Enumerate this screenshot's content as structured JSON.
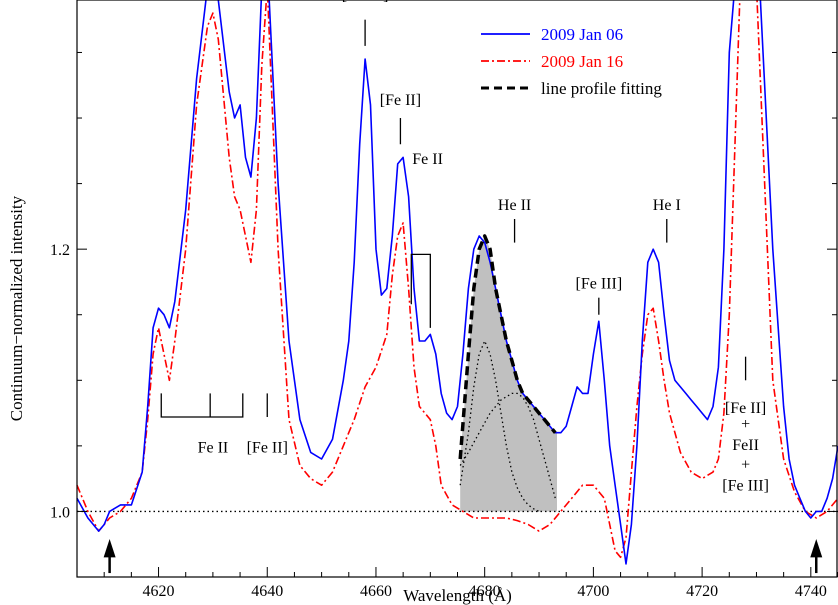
{
  "chart_data": {
    "type": "line",
    "title": "",
    "xlabel": "Wavelength (Å)",
    "ylabel": "Continuum−normalized intensity",
    "xlim": [
      4605,
      4745
    ],
    "ylim": [
      0.95,
      1.39
    ],
    "xticks": [
      4620,
      4640,
      4660,
      4680,
      4700,
      4720,
      4740
    ],
    "yticks": [
      1.0,
      1.2
    ],
    "ytick_labels": [
      "1.0",
      "1.2"
    ],
    "continuum_level": 1.0,
    "grid": false,
    "legend_position": "top-right",
    "colors": {
      "jan06": "#0000ff",
      "jan16": "#ff0000",
      "fit": "#000000",
      "fill": "#c0c0c0"
    },
    "series": [
      {
        "name": "2009 Jan 06",
        "style": "solid",
        "color": "#0000ff",
        "x": [
          4605,
          4607,
          4609,
          4610,
          4611,
          4613,
          4615,
          4617,
          4618,
          4619,
          4620,
          4621,
          4622,
          4623,
          4625,
          4627,
          4629,
          4630,
          4631,
          4633,
          4634,
          4635,
          4636,
          4637,
          4638,
          4639,
          4640,
          4642,
          4644,
          4646,
          4648,
          4650,
          4652,
          4654,
          4655,
          4656,
          4657,
          4658,
          4659,
          4660,
          4661,
          4662,
          4663,
          4664,
          4665,
          4666,
          4667,
          4668,
          4669,
          4670,
          4671,
          4672,
          4673,
          4674,
          4675,
          4676,
          4677,
          4678,
          4679,
          4680,
          4681,
          4682,
          4683,
          4684,
          4685,
          4686,
          4687,
          4688,
          4689,
          4690,
          4691,
          4692,
          4693,
          4694,
          4695,
          4696,
          4697,
          4698,
          4699,
          4700,
          4701,
          4702,
          4703,
          4704,
          4705,
          4706,
          4707,
          4708,
          4709,
          4710,
          4711,
          4712,
          4713,
          4714,
          4715,
          4716,
          4717,
          4718,
          4719,
          4720,
          4721,
          4722,
          4723,
          4724,
          4725,
          4727,
          4730,
          4733,
          4735,
          4736,
          4737,
          4738,
          4739,
          4740,
          4741,
          4742,
          4743,
          4744,
          4745
        ],
        "y": [
          1.01,
          0.995,
          0.985,
          0.99,
          1.0,
          1.005,
          1.005,
          1.03,
          1.08,
          1.14,
          1.155,
          1.15,
          1.14,
          1.16,
          1.23,
          1.33,
          1.4,
          1.41,
          1.39,
          1.32,
          1.3,
          1.31,
          1.27,
          1.255,
          1.3,
          1.4,
          1.42,
          1.25,
          1.13,
          1.07,
          1.045,
          1.04,
          1.055,
          1.1,
          1.13,
          1.19,
          1.28,
          1.345,
          1.31,
          1.2,
          1.165,
          1.17,
          1.21,
          1.265,
          1.27,
          1.24,
          1.17,
          1.13,
          1.13,
          1.135,
          1.12,
          1.09,
          1.075,
          1.07,
          1.08,
          1.12,
          1.17,
          1.2,
          1.21,
          1.205,
          1.19,
          1.17,
          1.15,
          1.13,
          1.115,
          1.1,
          1.09,
          1.085,
          1.08,
          1.075,
          1.07,
          1.065,
          1.06,
          1.06,
          1.065,
          1.08,
          1.095,
          1.09,
          1.09,
          1.12,
          1.145,
          1.1,
          1.05,
          1.02,
          0.99,
          0.96,
          0.99,
          1.05,
          1.13,
          1.19,
          1.2,
          1.19,
          1.15,
          1.115,
          1.1,
          1.095,
          1.09,
          1.085,
          1.08,
          1.075,
          1.07,
          1.08,
          1.11,
          1.2,
          1.35,
          1.45,
          1.45,
          1.2,
          1.08,
          1.04,
          1.02,
          1.01,
          1.0,
          0.995,
          1.0,
          1.0,
          1.01,
          1.025,
          1.05
        ]
      },
      {
        "name": "2009 Jan 16",
        "style": "dash-dot",
        "color": "#ff0000",
        "x": [
          4605,
          4607,
          4609,
          4610,
          4611,
          4613,
          4615,
          4617,
          4618,
          4619,
          4620,
          4621,
          4622,
          4623,
          4625,
          4627,
          4629,
          4630,
          4631,
          4633,
          4634,
          4635,
          4636,
          4637,
          4638,
          4639,
          4640,
          4642,
          4644,
          4646,
          4648,
          4650,
          4652,
          4654,
          4656,
          4658,
          4660,
          4662,
          4663,
          4664,
          4665,
          4666,
          4667,
          4668,
          4669,
          4670,
          4671,
          4672,
          4674,
          4676,
          4678,
          4680,
          4682,
          4684,
          4686,
          4688,
          4690,
          4692,
          4694,
          4696,
          4698,
          4700,
          4702,
          4703,
          4704,
          4705,
          4706,
          4707,
          4708,
          4709,
          4710,
          4711,
          4712,
          4713,
          4714,
          4716,
          4718,
          4720,
          4722,
          4723,
          4724,
          4725,
          4727,
          4730,
          4733,
          4735,
          4737,
          4739,
          4741,
          4743,
          4745
        ],
        "y": [
          1.02,
          1.0,
          0.985,
          0.99,
          0.995,
          1.0,
          1.01,
          1.03,
          1.07,
          1.12,
          1.14,
          1.12,
          1.1,
          1.13,
          1.2,
          1.31,
          1.37,
          1.38,
          1.36,
          1.27,
          1.24,
          1.23,
          1.21,
          1.19,
          1.23,
          1.34,
          1.4,
          1.2,
          1.07,
          1.035,
          1.025,
          1.02,
          1.03,
          1.05,
          1.07,
          1.095,
          1.11,
          1.135,
          1.18,
          1.21,
          1.22,
          1.17,
          1.11,
          1.08,
          1.075,
          1.07,
          1.05,
          1.02,
          1.005,
          1.0,
          0.995,
          0.995,
          0.995,
          0.995,
          0.993,
          0.99,
          0.985,
          0.99,
          1.0,
          1.01,
          1.02,
          1.02,
          1.01,
          0.99,
          0.97,
          0.965,
          0.98,
          1.03,
          1.08,
          1.12,
          1.15,
          1.155,
          1.13,
          1.1,
          1.075,
          1.045,
          1.03,
          1.025,
          1.03,
          1.04,
          1.075,
          1.15,
          1.4,
          1.4,
          1.1,
          1.04,
          1.015,
          1.0,
          0.995,
          1.0,
          1.01
        ]
      },
      {
        "name": "line profile fitting",
        "style": "dashed",
        "color": "#000000",
        "x": [
          4675.5,
          4677,
          4678,
          4679,
          4680,
          4681,
          4682,
          4683,
          4684,
          4685,
          4686,
          4687,
          4688,
          4689,
          4690,
          4691,
          4692,
          4693
        ],
        "y": [
          1.04,
          1.12,
          1.17,
          1.2,
          1.21,
          1.2,
          1.17,
          1.15,
          1.13,
          1.115,
          1.1,
          1.09,
          1.085,
          1.08,
          1.075,
          1.07,
          1.065,
          1.06
        ]
      }
    ],
    "components": [
      {
        "x": [
          4675.5,
          4677,
          4678,
          4679,
          4680,
          4681,
          4682,
          4683,
          4684,
          4685,
          4686,
          4687,
          4688,
          4689,
          4690
        ],
        "y": [
          1.02,
          1.06,
          1.095,
          1.12,
          1.13,
          1.12,
          1.1,
          1.075,
          1.05,
          1.03,
          1.018,
          1.01,
          1.005,
          1.002,
          1.0
        ]
      },
      {
        "x": [
          4675.5,
          4677,
          4679,
          4681,
          4683,
          4685,
          4686,
          4687,
          4688,
          4689,
          4690,
          4691,
          4692,
          4693
        ],
        "y": [
          1.035,
          1.045,
          1.06,
          1.075,
          1.085,
          1.09,
          1.09,
          1.087,
          1.08,
          1.07,
          1.055,
          1.04,
          1.025,
          1.01
        ]
      }
    ],
    "shaded_region": {
      "x_start": 4675.5,
      "x_end": 4693.3
    },
    "annotations": [
      {
        "text": "[Fe III]",
        "x": 4658,
        "y": 1.39,
        "tick_x": 4658,
        "tick_y1": 1.355,
        "tick_y2": 1.375
      },
      {
        "text": "[Fe II]",
        "x": 4664.5,
        "y": 1.31,
        "tick_x": 4664.5,
        "tick_y1": 1.28,
        "tick_y2": 1.3
      },
      {
        "text": "Fe II",
        "x": 4669.5,
        "y": 1.265
      },
      {
        "text": "He II",
        "x": 4685.5,
        "y": 1.23,
        "tick_x": 4685.5,
        "tick_y1": 1.205,
        "tick_y2": 1.223
      },
      {
        "text": "He I",
        "x": 4713.5,
        "y": 1.23,
        "tick_x": 4713.5,
        "tick_y1": 1.205,
        "tick_y2": 1.223
      },
      {
        "text": "[Fe III]",
        "x": 4701,
        "y": 1.17,
        "tick_x": 4701,
        "tick_y1": 1.15,
        "tick_y2": 1.163
      },
      {
        "text": "Fe II",
        "x": 4630,
        "y": 1.045
      },
      {
        "text": "[Fe II]",
        "x": 4640,
        "y": 1.045
      },
      {
        "text": "[Fe II]",
        "x": 4728,
        "y": 1.075
      },
      {
        "text": "+",
        "x": 4728,
        "y": 1.063
      },
      {
        "text": "FeII",
        "x": 4728,
        "y": 1.047
      },
      {
        "text": "+",
        "x": 4728,
        "y": 1.032
      },
      {
        "text": "[Fe III]",
        "x": 4728,
        "y": 1.016
      }
    ],
    "markers": [
      {
        "type": "up-arrow",
        "x": 4611
      },
      {
        "type": "up-arrow",
        "x": 4741
      }
    ]
  }
}
